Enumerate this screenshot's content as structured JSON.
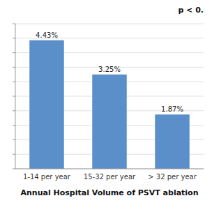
{
  "chart_data": {
    "type": "bar",
    "categories": [
      "1-14 per year",
      "15-32 per year",
      "> 32 per year"
    ],
    "values": [
      4.43,
      3.25,
      1.87
    ],
    "value_labels": [
      "4.43%",
      "3.25%",
      "1.87%"
    ],
    "data_labels": true,
    "color": "#5b8fc9",
    "xlabel": "Annual Hospital Volume of PSVT ablation",
    "annotation": "p < 0.",
    "ylim": [
      0,
      5.0
    ],
    "yticks": [
      0,
      0.5,
      1.0,
      1.5,
      2.0,
      2.5,
      3.0,
      3.5,
      4.0,
      4.5,
      5.0
    ],
    "grid": true,
    "tick_labels": "x"
  }
}
